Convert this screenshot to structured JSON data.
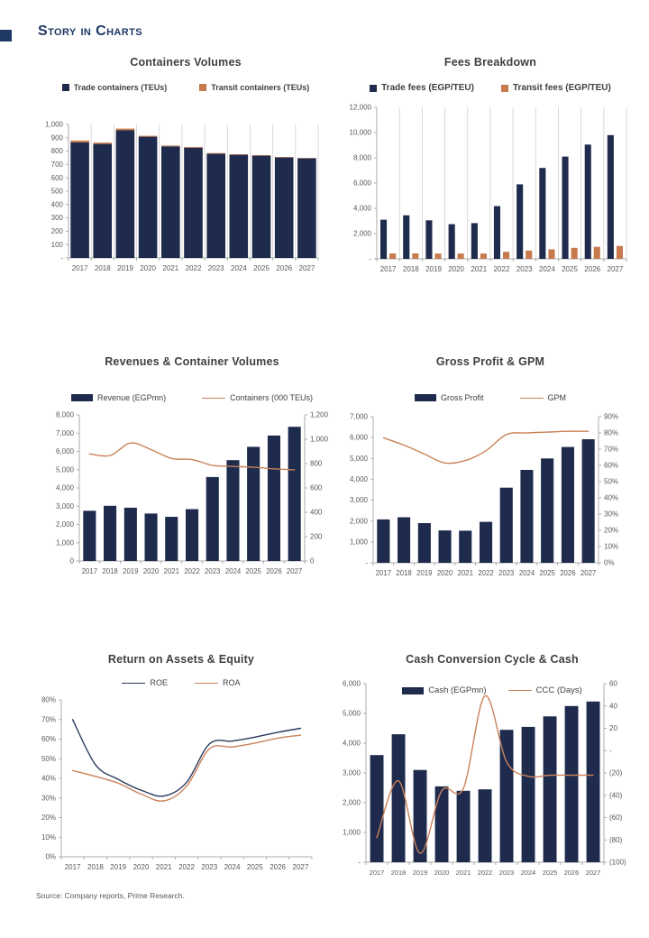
{
  "page": {
    "title": "Story in Charts",
    "source_note": "Source: Company reports, Prime Research.",
    "colors": {
      "navy": "#1e2b4d",
      "orange": "#c67a4e",
      "line_orange": "#c9825a",
      "title_navy": "#1f3864",
      "chart_title": "#3f3f3f",
      "axis_text": "#595959",
      "axis_line": "#adadad",
      "gridline": "#d9d9d9"
    }
  },
  "chart_data": [
    {
      "type": "bar",
      "stacked": true,
      "title": "Containers Volumes",
      "categories": [
        "2017",
        "2018",
        "2019",
        "2020",
        "2021",
        "2022",
        "2023",
        "2024",
        "2025",
        "2026",
        "2027"
      ],
      "series": [
        {
          "name": "Trade containers (TEUs)",
          "kind": "bar",
          "color": "#1e2b4d",
          "axis": "left",
          "values": [
            866,
            854,
            956,
            908,
            836,
            826,
            782,
            773,
            766,
            753,
            746
          ]
        },
        {
          "name": "Transit containers (TEUs)",
          "kind": "bar",
          "color": "#c67a4e",
          "axis": "left",
          "values": [
            14,
            10,
            13,
            7,
            6,
            6,
            4,
            4,
            4,
            4,
            3
          ]
        }
      ],
      "left_axis": {
        "min": 0,
        "max": 1000,
        "step": 100,
        "format": "comma",
        "zero": "-"
      },
      "right_axis": null,
      "vertical_gridlines": true,
      "legend_swatch": "square",
      "legend_bold": true
    },
    {
      "type": "bar",
      "stacked": false,
      "title": "Fees Breakdown",
      "categories": [
        "2017",
        "2018",
        "2019",
        "2020",
        "2021",
        "2022",
        "2023",
        "2024",
        "2025",
        "2026",
        "2027"
      ],
      "series": [
        {
          "name": "Trade fees (EGP/TEU)",
          "kind": "bar",
          "color": "#1e2b4d",
          "axis": "left",
          "values": [
            3100,
            3450,
            3050,
            2750,
            2830,
            4180,
            5900,
            7200,
            8100,
            9050,
            9800
          ]
        },
        {
          "name": "Transit fees (EGP/TEU)",
          "kind": "bar",
          "color": "#c67a4e",
          "axis": "left",
          "values": [
            430,
            430,
            420,
            420,
            420,
            560,
            660,
            760,
            870,
            950,
            1020
          ]
        }
      ],
      "left_axis": {
        "min": 0,
        "max": 12000,
        "step": 2000,
        "format": "comma",
        "zero": "-"
      },
      "right_axis": null,
      "vertical_gridlines": true,
      "legend_swatch": "square",
      "legend_bold": true
    },
    {
      "type": "bar",
      "stacked": false,
      "title": "Revenues & Container Volumes",
      "categories": [
        "2017",
        "2018",
        "2019",
        "2020",
        "2021",
        "2022",
        "2023",
        "2024",
        "2025",
        "2026",
        "2027"
      ],
      "series": [
        {
          "name": "Revenue (EGPmn)",
          "kind": "bar",
          "color": "#1e2b4d",
          "axis": "left",
          "values": [
            2750,
            3020,
            2920,
            2600,
            2420,
            2840,
            4600,
            5520,
            6250,
            6870,
            7350
          ]
        },
        {
          "name": "Containers (000 TEUs)",
          "kind": "line",
          "color": "#c9825a",
          "axis": "right",
          "values": [
            880,
            866,
            969,
            915,
            842,
            833,
            786,
            777,
            770,
            757,
            749
          ]
        }
      ],
      "left_axis": {
        "min": 0,
        "max": 8000,
        "step": 1000,
        "format": "comma",
        "zero": "0"
      },
      "right_axis": {
        "min": 0,
        "max": 1200,
        "step": 200,
        "format": "comma",
        "zero": "0"
      },
      "vertical_gridlines": false,
      "legend_swatch": "bar",
      "legend_bold": false
    },
    {
      "type": "bar",
      "stacked": false,
      "title": "Gross Profit & GPM",
      "categories": [
        "2017",
        "2018",
        "2019",
        "2020",
        "2021",
        "2022",
        "2023",
        "2024",
        "2025",
        "2026",
        "2027"
      ],
      "series": [
        {
          "name": "Gross Profit",
          "kind": "bar",
          "color": "#1e2b4d",
          "axis": "left",
          "values": [
            2080,
            2180,
            1900,
            1550,
            1540,
            1960,
            3600,
            4450,
            5000,
            5550,
            5920
          ]
        },
        {
          "name": "GPM",
          "kind": "line",
          "color": "#c9825a",
          "axis": "right",
          "values": [
            77,
            72.5,
            67,
            61.5,
            63,
            69,
            79,
            80,
            80.5,
            81,
            81
          ]
        }
      ],
      "left_axis": {
        "min": 0,
        "max": 7000,
        "step": 1000,
        "format": "comma",
        "zero": "-"
      },
      "right_axis": {
        "min": 0,
        "max": 90,
        "step": 10,
        "format": "percent",
        "zero": "0%"
      },
      "vertical_gridlines": false,
      "legend_swatch": "bar",
      "legend_bold": false
    },
    {
      "type": "line",
      "stacked": false,
      "title": "Return on Assets & Equity",
      "categories": [
        "2017",
        "2018",
        "2019",
        "2020",
        "2021",
        "2022",
        "2023",
        "2024",
        "2025",
        "2026",
        "2027"
      ],
      "series": [
        {
          "name": "ROE",
          "kind": "line",
          "color": "#2a3a5c",
          "axis": "left",
          "values": [
            70,
            47,
            39.5,
            34,
            31,
            38,
            57.5,
            59,
            61,
            63.5,
            65.5
          ]
        },
        {
          "name": "ROA",
          "kind": "line",
          "color": "#c9825a",
          "axis": "left",
          "values": [
            44,
            41,
            37.5,
            32,
            28.5,
            36,
            55,
            56,
            58,
            60.5,
            62
          ]
        }
      ],
      "left_axis": {
        "min": 0,
        "max": 80,
        "step": 10,
        "format": "percent",
        "zero": "0%"
      },
      "right_axis": null,
      "vertical_gridlines": false,
      "legend_swatch": "line",
      "legend_bold": false
    },
    {
      "type": "bar",
      "stacked": false,
      "title": "Cash Conversion Cycle & Cash",
      "categories": [
        "2017",
        "2018",
        "2019",
        "2020",
        "2021",
        "2022",
        "2023",
        "2024",
        "2025",
        "2026",
        "2027"
      ],
      "series": [
        {
          "name": "Cash (EGPmn)",
          "kind": "bar",
          "color": "#1e2b4d",
          "axis": "left",
          "values": [
            3600,
            4300,
            3100,
            2550,
            2400,
            2450,
            4450,
            4550,
            4900,
            5250,
            5400
          ]
        },
        {
          "name": "CCC (Days)",
          "kind": "line",
          "color": "#c9825a",
          "axis": "right",
          "values": [
            -78,
            -27,
            -92,
            -36,
            -34,
            49,
            -10,
            -23,
            -22,
            -22,
            -22
          ]
        }
      ],
      "left_axis": {
        "min": 0,
        "max": 6000,
        "step": 1000,
        "format": "comma",
        "zero": "-"
      },
      "right_axis": {
        "min": -100,
        "max": 60,
        "step": 20,
        "format": "paren",
        "zero": "-"
      },
      "vertical_gridlines": false,
      "legend_swatch": "bar",
      "legend_bold": false
    }
  ]
}
